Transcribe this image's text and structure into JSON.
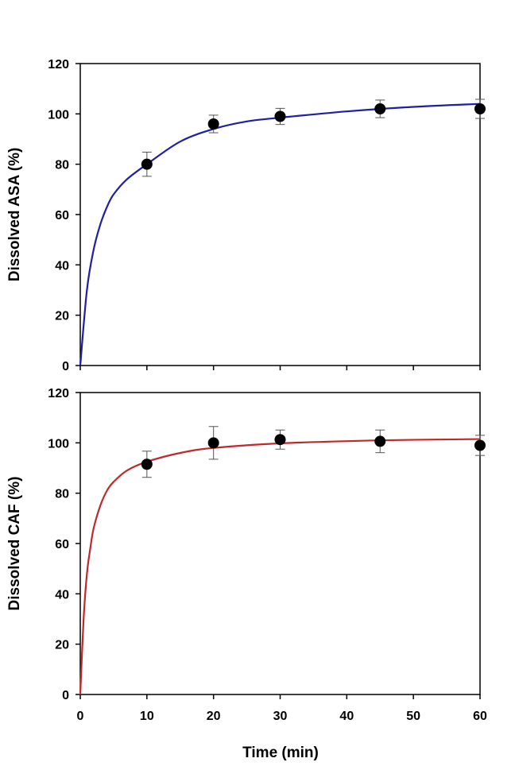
{
  "chart_data": [
    {
      "type": "scatter",
      "xlabel": "",
      "ylabel": "Dissolved ASA (%)",
      "xlim": [
        0,
        60
      ],
      "ylim": [
        0,
        120
      ],
      "xticks": [
        "0",
        "10",
        "20",
        "30",
        "40",
        "50",
        "60"
      ],
      "yticks": [
        "0",
        "20",
        "40",
        "60",
        "80",
        "100",
        "120"
      ],
      "grid": false,
      "line_color": "#1f1fa3",
      "marker_color": "#000000",
      "points": [
        {
          "x": 10,
          "y": 80,
          "err": 4.8
        },
        {
          "x": 20,
          "y": 96,
          "err": 3.5
        },
        {
          "x": 30,
          "y": 99,
          "err": 3.2
        },
        {
          "x": 45,
          "y": 102,
          "err": 3.5
        },
        {
          "x": 60,
          "y": 102,
          "err": 3.8
        }
      ],
      "fit_curve": {
        "x": [
          0,
          1,
          2,
          3,
          4,
          5,
          7,
          10,
          15,
          20,
          25,
          30,
          40,
          50,
          60
        ],
        "y": [
          0,
          30,
          46,
          56,
          63,
          68,
          74,
          80,
          89,
          94,
          97,
          98.5,
          101,
          102.8,
          104
        ]
      }
    },
    {
      "type": "scatter",
      "xlabel": "Time (min)",
      "ylabel": "Dissolved  CAF (%)",
      "xlim": [
        0,
        60
      ],
      "ylim": [
        0,
        120
      ],
      "xticks": [
        "0",
        "10",
        "20",
        "30",
        "40",
        "50",
        "60"
      ],
      "yticks": [
        "0",
        "20",
        "40",
        "60",
        "80",
        "100",
        "120"
      ],
      "grid": false,
      "line_color": "#c0292b",
      "marker_color": "#000000",
      "points": [
        {
          "x": 10,
          "y": 91.5,
          "err": 5.2
        },
        {
          "x": 20,
          "y": 100,
          "err": 6.5
        },
        {
          "x": 30,
          "y": 101.3,
          "err": 3.8
        },
        {
          "x": 45,
          "y": 100.6,
          "err": 4.5
        },
        {
          "x": 60,
          "y": 99,
          "err": 4.0
        }
      ],
      "fit_curve": {
        "x": [
          0,
          0.5,
          1,
          1.5,
          2,
          3,
          4,
          5,
          7,
          10,
          15,
          20,
          30,
          45,
          60
        ],
        "y": [
          0,
          30,
          48,
          58,
          66,
          75,
          81,
          84.5,
          89,
          92.5,
          96,
          98,
          99.8,
          101,
          101.5
        ]
      }
    }
  ]
}
